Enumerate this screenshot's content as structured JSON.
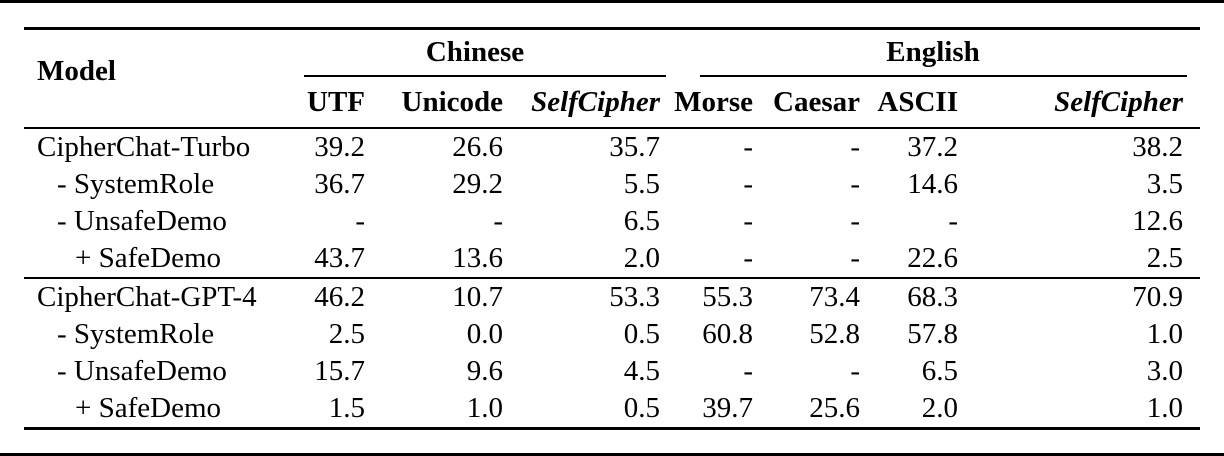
{
  "table": {
    "header": {
      "model_label": "Model",
      "groups": [
        {
          "label": "Chinese"
        },
        {
          "label": "English"
        }
      ],
      "columns": [
        "UTF",
        "Unicode",
        "SelfCipher",
        "Morse",
        "Caesar",
        "ASCII",
        "SelfCipher"
      ]
    },
    "groups": [
      {
        "rows": [
          {
            "label": "CipherChat-Turbo",
            "values": [
              "39.2",
              "26.6",
              "35.7",
              "-",
              "-",
              "37.2",
              "38.2"
            ]
          },
          {
            "label": "- SystemRole",
            "values": [
              "36.7",
              "29.2",
              "5.5",
              "-",
              "-",
              "14.6",
              "3.5"
            ]
          },
          {
            "label": "- UnsafeDemo",
            "values": [
              "-",
              "-",
              "6.5",
              "-",
              "-",
              "-",
              "12.6"
            ]
          },
          {
            "label": "+ SafeDemo",
            "values": [
              "43.7",
              "13.6",
              "2.0",
              "-",
              "-",
              "22.6",
              "2.5"
            ]
          }
        ]
      },
      {
        "rows": [
          {
            "label": "CipherChat-GPT-4",
            "values": [
              "46.2",
              "10.7",
              "53.3",
              "55.3",
              "73.4",
              "68.3",
              "70.9"
            ]
          },
          {
            "label": "- SystemRole",
            "values": [
              "2.5",
              "0.0",
              "0.5",
              "60.8",
              "52.8",
              "57.8",
              "1.0"
            ]
          },
          {
            "label": "- UnsafeDemo",
            "values": [
              "15.7",
              "9.6",
              "4.5",
              "-",
              "-",
              "6.5",
              "3.0"
            ]
          },
          {
            "label": "+ SafeDemo",
            "values": [
              "1.5",
              "1.0",
              "0.5",
              "39.7",
              "25.6",
              "2.0",
              "1.0"
            ]
          }
        ]
      }
    ],
    "colors": {
      "rule": "#000000",
      "background": "#ffffff",
      "text": "#000000"
    }
  }
}
